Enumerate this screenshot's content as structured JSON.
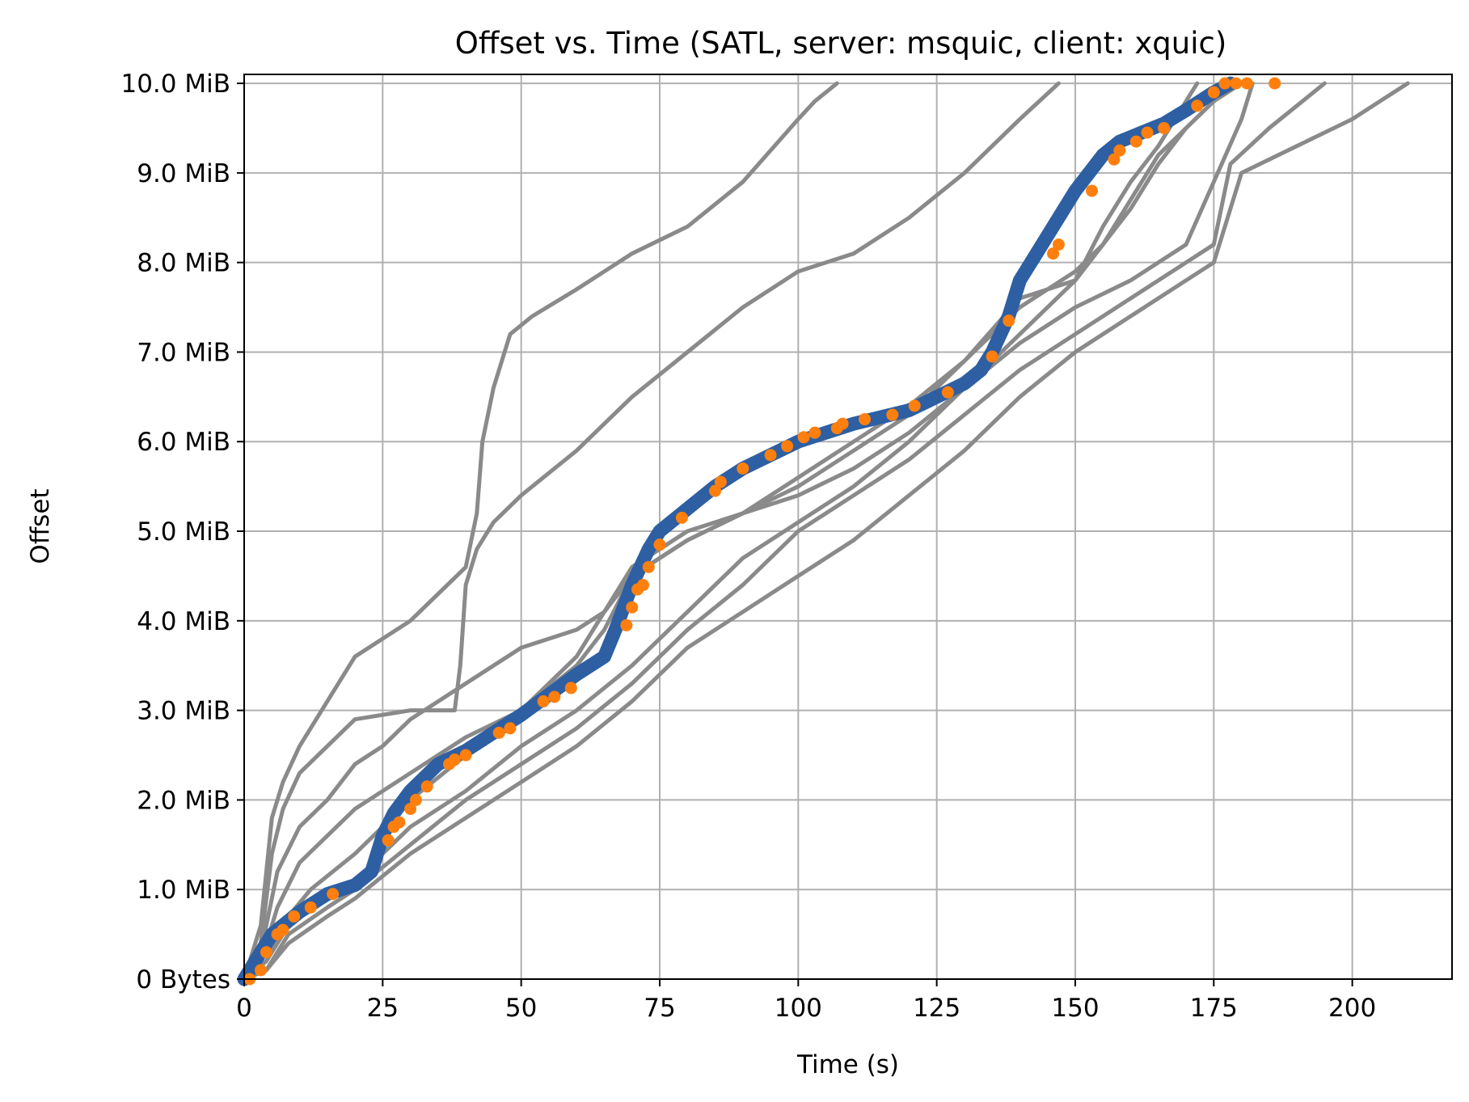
{
  "chart_data": {
    "type": "line",
    "title": "Offset vs. Time (SATL, server: msquic, client: xquic)",
    "xlabel": "Time (s)",
    "ylabel": "Offset",
    "xlim": [
      0,
      218
    ],
    "ylim": [
      0,
      10.1
    ],
    "y_unit": "MiB",
    "xticks": [
      0,
      25,
      50,
      75,
      100,
      125,
      150,
      175,
      200
    ],
    "xtick_labels": [
      "0",
      "25",
      "50",
      "75",
      "100",
      "125",
      "150",
      "175",
      "200"
    ],
    "yticks": [
      0,
      1,
      2,
      3,
      4,
      5,
      6,
      7,
      8,
      9,
      10
    ],
    "ytick_labels": [
      "0 Bytes",
      "1.0 MiB",
      "2.0 MiB",
      "3.0 MiB",
      "4.0 MiB",
      "5.0 MiB",
      "6.0 MiB",
      "7.0 MiB",
      "8.0 MiB",
      "9.0 MiB",
      "10.0 MiB"
    ],
    "grid": true,
    "legend": false,
    "colors": {
      "background_runs": "#8a8a8a",
      "highlighted_run": "#2e5fa3",
      "markers": "#ff7f0e"
    },
    "background_series": [
      {
        "x": [
          0,
          3,
          5,
          7,
          10,
          20,
          30,
          40,
          42,
          43,
          45,
          48,
          52,
          60,
          70,
          80,
          90,
          100,
          103,
          107
        ],
        "y": [
          0,
          0.6,
          1.8,
          2.2,
          2.6,
          3.6,
          4.0,
          4.6,
          5.2,
          6.0,
          6.6,
          7.2,
          7.4,
          7.7,
          8.1,
          8.4,
          8.9,
          9.6,
          9.8,
          10.0
        ]
      },
      {
        "x": [
          0,
          3,
          5,
          7,
          10,
          20,
          30,
          38,
          39,
          40,
          42,
          45,
          50,
          60,
          70,
          80,
          90,
          100,
          110,
          120,
          130,
          140,
          147
        ],
        "y": [
          0,
          0.4,
          1.4,
          1.9,
          2.3,
          2.9,
          3.0,
          3.0,
          3.5,
          4.4,
          4.8,
          5.1,
          5.4,
          5.9,
          6.5,
          7.0,
          7.5,
          7.9,
          8.1,
          8.5,
          9.0,
          9.6,
          10.0
        ]
      },
      {
        "x": [
          0,
          3,
          6,
          10,
          15,
          20,
          25,
          30,
          40,
          50,
          60,
          65,
          70,
          80,
          90,
          100,
          110,
          120,
          130,
          140,
          150,
          155,
          160,
          165,
          170,
          172
        ],
        "y": [
          0,
          0.3,
          1.2,
          1.7,
          2.0,
          2.4,
          2.6,
          2.9,
          3.3,
          3.7,
          3.9,
          4.1,
          4.5,
          4.9,
          5.2,
          5.4,
          5.7,
          6.1,
          6.6,
          7.2,
          7.8,
          8.4,
          8.9,
          9.3,
          9.8,
          10.0
        ]
      },
      {
        "x": [
          0,
          3,
          6,
          10,
          20,
          30,
          40,
          50,
          60,
          70,
          80,
          90,
          100,
          110,
          120,
          130,
          140,
          150,
          155,
          160,
          165,
          170,
          175,
          180
        ],
        "y": [
          0,
          0.2,
          0.8,
          1.3,
          1.9,
          2.3,
          2.7,
          3.0,
          3.6,
          4.6,
          5.0,
          5.2,
          5.6,
          6.0,
          6.4,
          6.9,
          7.5,
          7.9,
          8.2,
          8.7,
          9.2,
          9.5,
          9.8,
          10.0
        ]
      },
      {
        "x": [
          0,
          4,
          8,
          12,
          20,
          30,
          40,
          50,
          60,
          65,
          70,
          80,
          90,
          100,
          110,
          120,
          130,
          140,
          150,
          160,
          165,
          170,
          175,
          178
        ],
        "y": [
          0,
          0.2,
          0.7,
          1.0,
          1.4,
          2.0,
          2.5,
          3.0,
          3.5,
          3.9,
          4.5,
          4.9,
          5.2,
          5.5,
          5.9,
          6.3,
          6.9,
          7.6,
          7.8,
          8.6,
          9.1,
          9.5,
          9.8,
          10.0
        ]
      },
      {
        "x": [
          0,
          4,
          8,
          15,
          20,
          30,
          40,
          50,
          60,
          70,
          80,
          90,
          100,
          110,
          120,
          130,
          140,
          150,
          160,
          170,
          175,
          180,
          182
        ],
        "y": [
          0,
          0.2,
          0.6,
          0.9,
          1.1,
          1.7,
          2.1,
          2.6,
          3.0,
          3.5,
          4.1,
          4.7,
          5.1,
          5.5,
          6.0,
          6.6,
          7.1,
          7.5,
          7.8,
          8.2,
          8.9,
          9.6,
          10.0
        ]
      },
      {
        "x": [
          0,
          4,
          8,
          15,
          20,
          30,
          40,
          50,
          60,
          70,
          80,
          90,
          100,
          110,
          120,
          130,
          140,
          150,
          160,
          170,
          175,
          178,
          185,
          195
        ],
        "y": [
          0,
          0.1,
          0.5,
          0.8,
          1.0,
          1.5,
          2.0,
          2.4,
          2.8,
          3.3,
          3.9,
          4.4,
          5.0,
          5.4,
          5.8,
          6.3,
          6.8,
          7.2,
          7.6,
          8.0,
          8.2,
          9.1,
          9.5,
          10.0
        ]
      },
      {
        "x": [
          0,
          4,
          8,
          15,
          20,
          30,
          40,
          50,
          60,
          70,
          80,
          90,
          100,
          110,
          120,
          130,
          140,
          150,
          160,
          170,
          175,
          178,
          180,
          190,
          200,
          205,
          210
        ],
        "y": [
          0,
          0.1,
          0.4,
          0.7,
          0.9,
          1.4,
          1.8,
          2.2,
          2.6,
          3.1,
          3.7,
          4.1,
          4.5,
          4.9,
          5.4,
          5.9,
          6.5,
          7.0,
          7.4,
          7.8,
          8.0,
          8.6,
          9.0,
          9.3,
          9.6,
          9.8,
          10.0
        ]
      }
    ],
    "highlighted_series": {
      "x": [
        0,
        2,
        5,
        10,
        15,
        20,
        23,
        25,
        27,
        30,
        35,
        40,
        50,
        60,
        65,
        67,
        70,
        73,
        75,
        80,
        85,
        90,
        100,
        110,
        120,
        125,
        130,
        133,
        135,
        138,
        140,
        143,
        147,
        150,
        155,
        158,
        162,
        166,
        170,
        175,
        178
      ],
      "y": [
        0,
        0.2,
        0.5,
        0.75,
        0.95,
        1.05,
        1.2,
        1.6,
        1.85,
        2.1,
        2.4,
        2.55,
        2.95,
        3.4,
        3.6,
        3.9,
        4.4,
        4.8,
        5.0,
        5.25,
        5.5,
        5.7,
        6.0,
        6.2,
        6.35,
        6.5,
        6.65,
        6.8,
        7.0,
        7.4,
        7.8,
        8.1,
        8.5,
        8.8,
        9.2,
        9.35,
        9.45,
        9.55,
        9.7,
        9.9,
        10.0
      ]
    },
    "markers": {
      "x": [
        1,
        3,
        4,
        6,
        7,
        9,
        12,
        16,
        26,
        27,
        28,
        30,
        31,
        33,
        37,
        38,
        40,
        46,
        48,
        54,
        56,
        59,
        69,
        70,
        71,
        72,
        73,
        75,
        79,
        85,
        86,
        90,
        95,
        98,
        101,
        103,
        107,
        108,
        112,
        117,
        121,
        127,
        135,
        138,
        146,
        147,
        153,
        157,
        158,
        161,
        163,
        166,
        172,
        175,
        177,
        179,
        181,
        186
      ],
      "y": [
        0.0,
        0.1,
        0.3,
        0.5,
        0.55,
        0.7,
        0.8,
        0.95,
        1.55,
        1.7,
        1.75,
        1.9,
        2.0,
        2.15,
        2.4,
        2.45,
        2.5,
        2.75,
        2.8,
        3.1,
        3.15,
        3.25,
        3.95,
        4.15,
        4.35,
        4.4,
        4.6,
        4.85,
        5.15,
        5.45,
        5.55,
        5.7,
        5.85,
        5.95,
        6.05,
        6.1,
        6.15,
        6.2,
        6.25,
        6.3,
        6.4,
        6.55,
        6.95,
        7.35,
        8.1,
        8.2,
        8.8,
        9.15,
        9.25,
        9.35,
        9.45,
        9.5,
        9.75,
        9.9,
        10.0,
        10.0,
        10.0,
        10.0
      ]
    }
  }
}
